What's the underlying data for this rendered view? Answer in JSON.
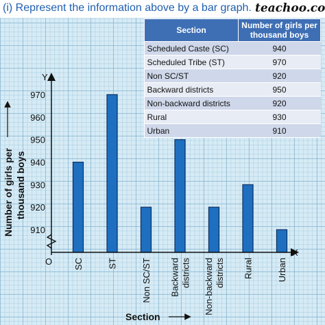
{
  "header": {
    "question": "(i) Represent the information above by a bar graph.",
    "brand": "teachoo.com"
  },
  "table": {
    "headers": [
      "Section",
      "Number of girls per thousand boys"
    ],
    "rows": [
      [
        "Scheduled Caste (SC)",
        "940"
      ],
      [
        "Scheduled Tribe (ST)",
        "970"
      ],
      [
        "Non SC/ST",
        "920"
      ],
      [
        "Backward districts",
        "950"
      ],
      [
        "Non-backward districts",
        "920"
      ],
      [
        "Rural",
        "930"
      ],
      [
        "Urban",
        "910"
      ]
    ]
  },
  "chart_data": {
    "type": "bar",
    "categories": [
      "SC",
      "ST",
      "Non SC/ST",
      "Backward districts",
      "Non-backward districts",
      "Rural",
      "Urban"
    ],
    "values": [
      940,
      970,
      920,
      950,
      920,
      930,
      910
    ],
    "xlabel": "Section",
    "ylabel": "Number of girls per thousand boys",
    "yticks": [
      910,
      920,
      930,
      940,
      950,
      960,
      970
    ],
    "ylim": [
      900,
      980
    ],
    "axis_break": true,
    "origin_label": "O",
    "x_axis_letter": "X",
    "y_axis_letter": "Y",
    "bar_color": "#1f6fc0",
    "grid": true
  }
}
